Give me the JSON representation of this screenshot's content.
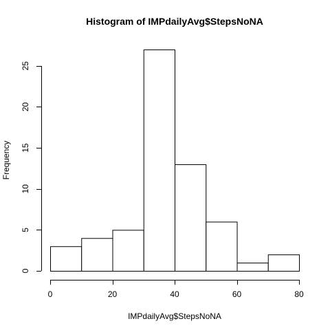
{
  "chart_data": {
    "type": "bar",
    "title": "Histogram of IMPdailyAvg$StepsNoNA",
    "xlabel": "IMPdailyAvg$StepsNoNA",
    "ylabel": "Frequency",
    "bins": [
      {
        "x0": 0,
        "x1": 10,
        "count": 3
      },
      {
        "x0": 10,
        "x1": 20,
        "count": 4
      },
      {
        "x0": 20,
        "x1": 30,
        "count": 5
      },
      {
        "x0": 30,
        "x1": 40,
        "count": 27
      },
      {
        "x0": 40,
        "x1": 50,
        "count": 13
      },
      {
        "x0": 50,
        "x1": 60,
        "count": 6
      },
      {
        "x0": 60,
        "x1": 70,
        "count": 1
      },
      {
        "x0": 70,
        "x1": 80,
        "count": 2
      }
    ],
    "xlim": [
      0,
      80
    ],
    "ylim": [
      0,
      27
    ],
    "x_ticks": [
      0,
      20,
      40,
      60,
      80
    ],
    "y_ticks": [
      0,
      5,
      10,
      15,
      20,
      25
    ],
    "x_tick_labels": [
      "0",
      "20",
      "40",
      "60",
      "80"
    ],
    "y_tick_labels": [
      "0",
      "5",
      "10",
      "15",
      "20",
      "25"
    ],
    "grid": false,
    "legend": "none",
    "bar_fill": "#ffffff",
    "bar_stroke": "#000000"
  }
}
